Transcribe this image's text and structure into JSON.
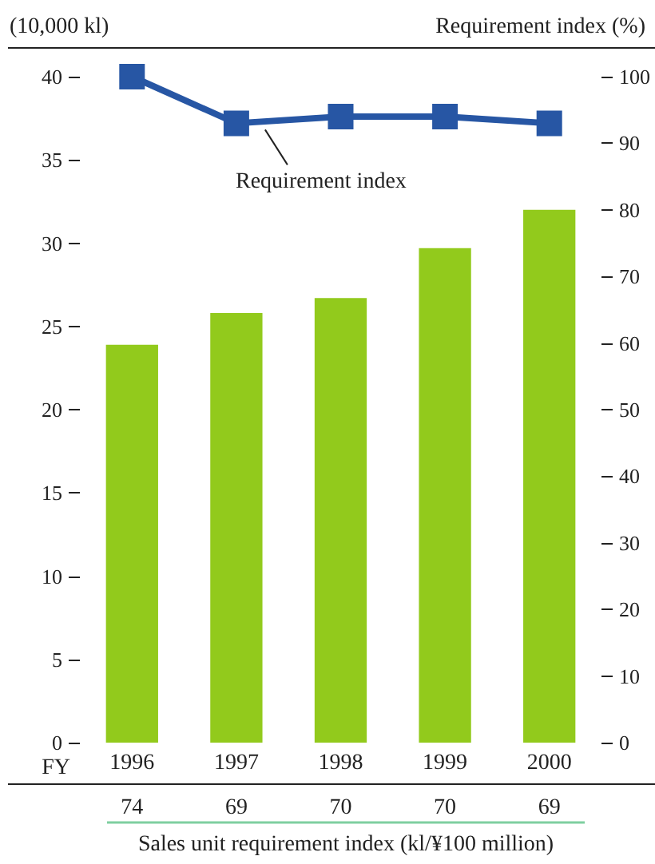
{
  "chart_data": {
    "type": "bar",
    "xlabel": "FY",
    "ylabel": "(10,000 kl)",
    "y2label": "Requirement index (%)",
    "categories": [
      "1996",
      "1997",
      "1998",
      "1999",
      "2000"
    ],
    "series": [
      {
        "color": "#92ca1c",
        "values": [
          23.9,
          25.8,
          26.7,
          29.7,
          32.0
        ]
      },
      {
        "type": "line",
        "name": "Requirement index",
        "axis": "y2",
        "color": "#2756a4",
        "marker": "square",
        "values": [
          100,
          93,
          94,
          94,
          93
        ]
      }
    ],
    "ylim": [
      0,
      40
    ],
    "yticks": [
      0,
      5,
      10,
      15,
      20,
      25,
      30,
      35,
      40
    ],
    "y2lim": [
      0,
      100
    ],
    "y2ticks": [
      0,
      10,
      20,
      30,
      40,
      50,
      60,
      70,
      80,
      90,
      100
    ],
    "grid": false,
    "annotations": [
      "74",
      "69",
      "70",
      "70",
      "69",
      "Sales unit requirement index (kl/¥100 million)"
    ]
  }
}
